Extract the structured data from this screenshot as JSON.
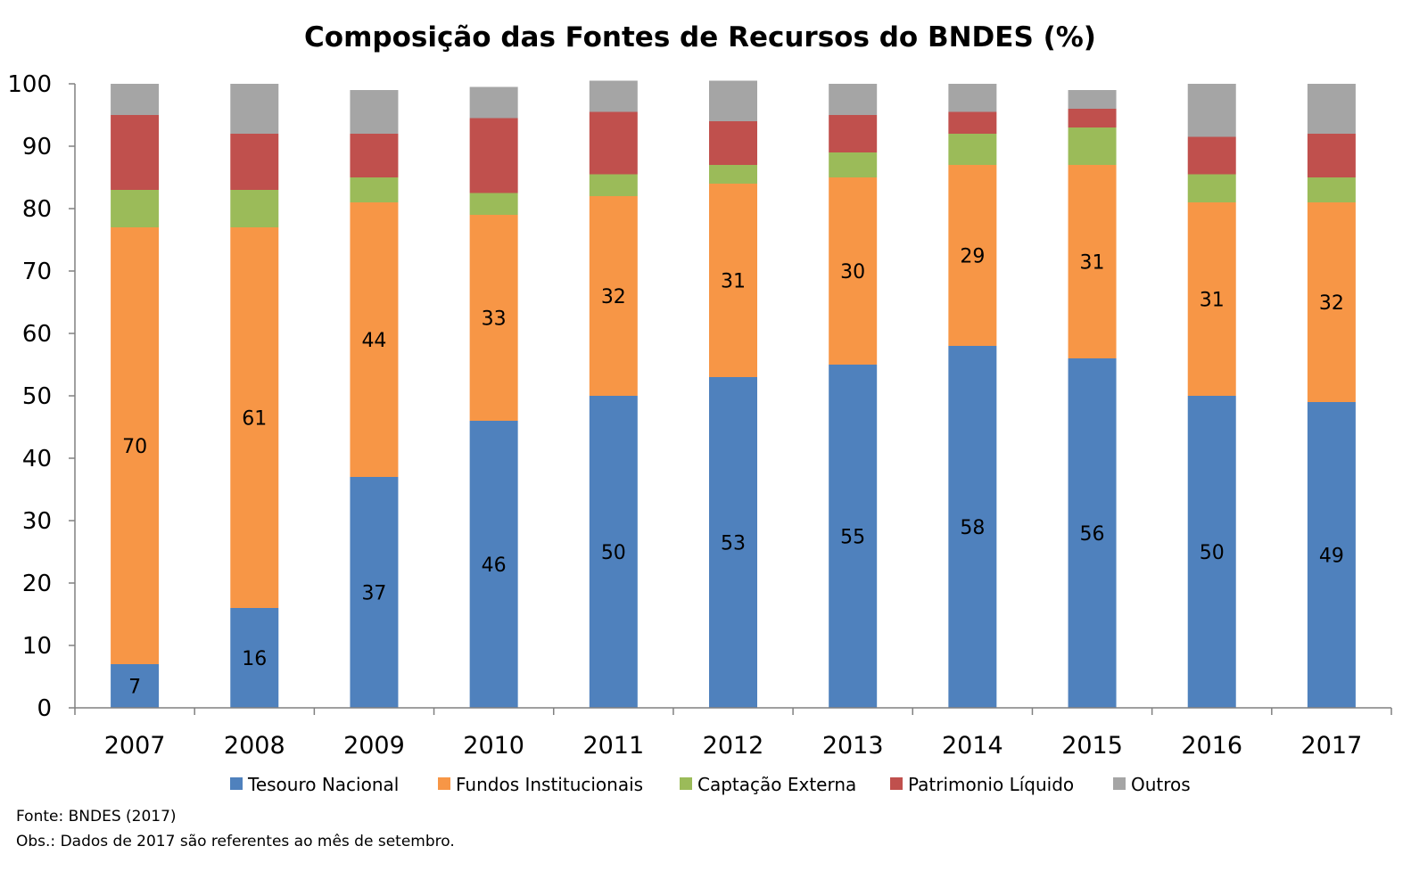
{
  "chart_data": {
    "type": "bar",
    "stacked": true,
    "title": "Composição das Fontes de Recursos do BNDES (%)",
    "xlabel": "",
    "ylabel": "",
    "ylim": [
      0,
      100
    ],
    "yticks": [
      0,
      10,
      20,
      30,
      40,
      50,
      60,
      70,
      80,
      90,
      100
    ],
    "categories": [
      "2007",
      "2008",
      "2009",
      "2010",
      "2011",
      "2012",
      "2013",
      "2014",
      "2015",
      "2016",
      "2017"
    ],
    "series": [
      {
        "name": "Tesouro Nacional",
        "color": "#4F81BD",
        "values": [
          7,
          16,
          37,
          46,
          50,
          53,
          55,
          58,
          56,
          50,
          49
        ],
        "labels": [
          "7",
          "16",
          "37",
          "46",
          "50",
          "53",
          "55",
          "58",
          "56",
          "50",
          "49"
        ]
      },
      {
        "name": "Fundos Institucionais",
        "color": "#F79646",
        "values": [
          70,
          61,
          44,
          33,
          32,
          31,
          30,
          29,
          31,
          31,
          32
        ],
        "labels": [
          "70",
          "61",
          "44",
          "33",
          "32",
          "31",
          "30",
          "29",
          "31",
          "31",
          "32"
        ]
      },
      {
        "name": "Captação Externa",
        "color": "#9BBB59",
        "values": [
          6,
          6,
          4,
          3.5,
          3.5,
          3,
          4,
          5,
          6,
          4.5,
          4
        ],
        "labels": []
      },
      {
        "name": "Patrimonio Líquido",
        "color": "#C0504D",
        "values": [
          12,
          9,
          7,
          12,
          10,
          7,
          6,
          3.5,
          3,
          6,
          7
        ],
        "labels": []
      },
      {
        "name": "Outros",
        "color": "#A5A5A5",
        "values": [
          5,
          8,
          7,
          5,
          5,
          6.5,
          5,
          4.5,
          3,
          8.5,
          8
        ],
        "labels": []
      }
    ],
    "legend_position": "bottom",
    "grid": false
  },
  "notes": {
    "source": "Fonte: BNDES (2017)",
    "obs": "Obs.: Dados de 2017 são referentes ao mês de setembro."
  }
}
